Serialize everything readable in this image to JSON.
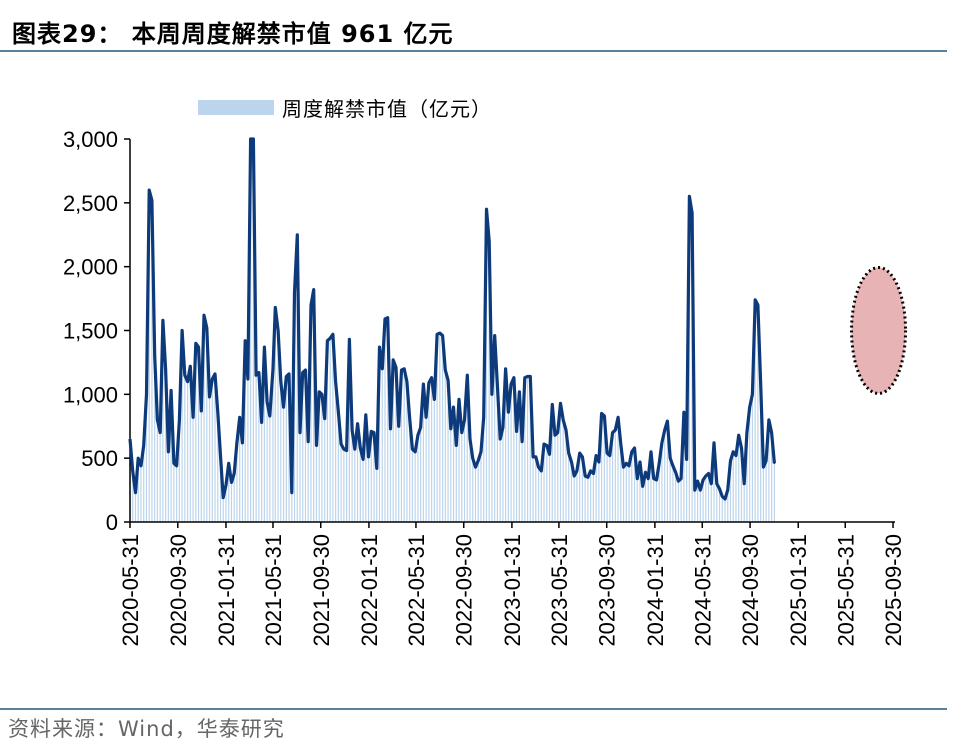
{
  "header": {
    "title": "图表29：  本周周度解禁市值 961 亿元"
  },
  "footer": {
    "source": "资料来源：Wind，华泰研究"
  },
  "colors": {
    "line": "#0d3a7a",
    "bars": "#bcd5ec",
    "highlight_fill": "#e8b3b5",
    "rule": "#5b7f99"
  },
  "chart_data": {
    "type": "line",
    "legend": {
      "label": "周度解禁市值（亿元）",
      "placement": "top-left"
    },
    "ylim": [
      0,
      3000
    ],
    "yticks": [
      0,
      500,
      1000,
      1500,
      2000,
      2500,
      3000
    ],
    "ytick_labels": [
      "0",
      "500",
      "1,000",
      "1,500",
      "2,000",
      "2,500",
      "3,000"
    ],
    "xlim": [
      "2020-05-31",
      "2025-10-05"
    ],
    "xticks": [
      "2020-05-31",
      "2020-09-30",
      "2021-01-31",
      "2021-05-31",
      "2021-09-30",
      "2022-01-31",
      "2022-05-31",
      "2022-09-30",
      "2023-01-31",
      "2023-05-31",
      "2023-09-30",
      "2024-01-31",
      "2024-05-31",
      "2024-09-30",
      "2025-01-31",
      "2025-05-31",
      "2025-09-30"
    ],
    "highlight": {
      "x": "2025-08-24",
      "y": 1500,
      "note": "latest spike circled"
    },
    "series": [
      {
        "kind": "line",
        "points": [
          [
            "2020-05-31",
            650
          ],
          [
            "2020-06-07",
            400
          ],
          [
            "2020-06-14",
            230
          ],
          [
            "2020-06-21",
            500
          ],
          [
            "2020-06-28",
            440
          ],
          [
            "2020-07-05",
            600
          ],
          [
            "2020-07-12",
            1000
          ],
          [
            "2020-07-19",
            2600
          ],
          [
            "2020-07-26",
            2520
          ],
          [
            "2020-08-02",
            1300
          ],
          [
            "2020-08-09",
            800
          ],
          [
            "2020-08-16",
            700
          ],
          [
            "2020-08-23",
            1580
          ],
          [
            "2020-08-30",
            1200
          ],
          [
            "2020-09-06",
            550
          ],
          [
            "2020-09-13",
            1030
          ],
          [
            "2020-09-20",
            460
          ],
          [
            "2020-09-27",
            440
          ],
          [
            "2020-10-04",
            800
          ],
          [
            "2020-10-11",
            1500
          ],
          [
            "2020-10-18",
            1150
          ],
          [
            "2020-10-25",
            1100
          ],
          [
            "2020-11-01",
            1220
          ],
          [
            "2020-11-08",
            820
          ],
          [
            "2020-11-15",
            1400
          ],
          [
            "2020-11-22",
            1370
          ],
          [
            "2020-11-29",
            870
          ],
          [
            "2020-12-06",
            1620
          ],
          [
            "2020-12-13",
            1520
          ],
          [
            "2020-12-20",
            980
          ],
          [
            "2020-12-27",
            1120
          ],
          [
            "2021-01-03",
            1160
          ],
          [
            "2021-01-10",
            870
          ],
          [
            "2021-01-17",
            520
          ],
          [
            "2021-01-24",
            190
          ],
          [
            "2021-01-31",
            290
          ],
          [
            "2021-02-07",
            460
          ],
          [
            "2021-02-14",
            310
          ],
          [
            "2021-02-21",
            380
          ],
          [
            "2021-02-28",
            620
          ],
          [
            "2021-03-07",
            820
          ],
          [
            "2021-03-14",
            620
          ],
          [
            "2021-03-21",
            1420
          ],
          [
            "2021-03-28",
            1120
          ],
          [
            "2021-04-04",
            3000
          ],
          [
            "2021-04-11",
            3000
          ],
          [
            "2021-04-18",
            1150
          ],
          [
            "2021-04-25",
            1170
          ],
          [
            "2021-05-02",
            780
          ],
          [
            "2021-05-09",
            1370
          ],
          [
            "2021-05-16",
            940
          ],
          [
            "2021-05-23",
            830
          ],
          [
            "2021-05-31",
            1200
          ],
          [
            "2021-06-06",
            1680
          ],
          [
            "2021-06-13",
            1500
          ],
          [
            "2021-06-20",
            1100
          ],
          [
            "2021-06-27",
            900
          ],
          [
            "2021-07-04",
            1140
          ],
          [
            "2021-07-11",
            1160
          ],
          [
            "2021-07-18",
            230
          ],
          [
            "2021-07-25",
            1800
          ],
          [
            "2021-08-01",
            2250
          ],
          [
            "2021-08-08",
            700
          ],
          [
            "2021-08-15",
            1170
          ],
          [
            "2021-08-22",
            1190
          ],
          [
            "2021-08-29",
            630
          ],
          [
            "2021-09-05",
            1700
          ],
          [
            "2021-09-12",
            1820
          ],
          [
            "2021-09-19",
            600
          ],
          [
            "2021-09-26",
            1020
          ],
          [
            "2021-10-03",
            1000
          ],
          [
            "2021-10-10",
            810
          ],
          [
            "2021-10-17",
            1420
          ],
          [
            "2021-10-24",
            1440
          ],
          [
            "2021-10-31",
            1470
          ],
          [
            "2021-11-07",
            1100
          ],
          [
            "2021-11-14",
            860
          ],
          [
            "2021-11-21",
            610
          ],
          [
            "2021-11-28",
            570
          ],
          [
            "2021-12-05",
            560
          ],
          [
            "2021-12-12",
            1430
          ],
          [
            "2021-12-19",
            720
          ],
          [
            "2021-12-26",
            570
          ],
          [
            "2022-01-02",
            770
          ],
          [
            "2022-01-09",
            580
          ],
          [
            "2022-01-16",
            490
          ],
          [
            "2022-01-23",
            840
          ],
          [
            "2022-01-30",
            510
          ],
          [
            "2022-02-06",
            710
          ],
          [
            "2022-02-13",
            700
          ],
          [
            "2022-02-20",
            420
          ],
          [
            "2022-02-27",
            1370
          ],
          [
            "2022-03-06",
            1200
          ],
          [
            "2022-03-13",
            1590
          ],
          [
            "2022-03-20",
            1600
          ],
          [
            "2022-03-27",
            730
          ],
          [
            "2022-04-03",
            1270
          ],
          [
            "2022-04-10",
            1210
          ],
          [
            "2022-04-17",
            750
          ],
          [
            "2022-04-24",
            1190
          ],
          [
            "2022-05-01",
            1200
          ],
          [
            "2022-05-08",
            1100
          ],
          [
            "2022-05-15",
            810
          ],
          [
            "2022-05-22",
            570
          ],
          [
            "2022-05-29",
            550
          ],
          [
            "2022-06-05",
            680
          ],
          [
            "2022-06-12",
            740
          ],
          [
            "2022-06-19",
            1080
          ],
          [
            "2022-06-26",
            820
          ],
          [
            "2022-07-03",
            1090
          ],
          [
            "2022-07-10",
            1130
          ],
          [
            "2022-07-17",
            960
          ],
          [
            "2022-07-24",
            1470
          ],
          [
            "2022-07-31",
            1480
          ],
          [
            "2022-08-07",
            1460
          ],
          [
            "2022-08-14",
            1190
          ],
          [
            "2022-08-21",
            1110
          ],
          [
            "2022-08-28",
            730
          ],
          [
            "2022-09-04",
            900
          ],
          [
            "2022-09-11",
            600
          ],
          [
            "2022-09-18",
            960
          ],
          [
            "2022-09-25",
            700
          ],
          [
            "2022-10-02",
            800
          ],
          [
            "2022-10-09",
            1150
          ],
          [
            "2022-10-16",
            650
          ],
          [
            "2022-10-23",
            500
          ],
          [
            "2022-10-30",
            430
          ],
          [
            "2022-11-06",
            480
          ],
          [
            "2022-11-13",
            550
          ],
          [
            "2022-11-20",
            820
          ],
          [
            "2022-11-27",
            2450
          ],
          [
            "2022-12-04",
            2200
          ],
          [
            "2022-12-11",
            1000
          ],
          [
            "2022-12-18",
            1460
          ],
          [
            "2022-12-25",
            1070
          ],
          [
            "2023-01-01",
            650
          ],
          [
            "2023-01-08",
            740
          ],
          [
            "2023-01-15",
            1200
          ],
          [
            "2023-01-22",
            860
          ],
          [
            "2023-01-29",
            1080
          ],
          [
            "2023-02-05",
            1130
          ],
          [
            "2023-02-12",
            710
          ],
          [
            "2023-02-19",
            1020
          ],
          [
            "2023-02-26",
            630
          ],
          [
            "2023-03-05",
            1130
          ],
          [
            "2023-03-12",
            1140
          ],
          [
            "2023-03-19",
            1140
          ],
          [
            "2023-03-26",
            510
          ],
          [
            "2023-04-02",
            510
          ],
          [
            "2023-04-09",
            430
          ],
          [
            "2023-04-16",
            400
          ],
          [
            "2023-04-23",
            610
          ],
          [
            "2023-04-30",
            600
          ],
          [
            "2023-05-07",
            530
          ],
          [
            "2023-05-14",
            920
          ],
          [
            "2023-05-21",
            680
          ],
          [
            "2023-05-28",
            700
          ],
          [
            "2023-06-04",
            930
          ],
          [
            "2023-06-11",
            800
          ],
          [
            "2023-06-18",
            720
          ],
          [
            "2023-06-25",
            540
          ],
          [
            "2023-07-02",
            470
          ],
          [
            "2023-07-09",
            360
          ],
          [
            "2023-07-16",
            400
          ],
          [
            "2023-07-23",
            540
          ],
          [
            "2023-07-30",
            510
          ],
          [
            "2023-08-06",
            360
          ],
          [
            "2023-08-13",
            350
          ],
          [
            "2023-08-20",
            400
          ],
          [
            "2023-08-27",
            380
          ],
          [
            "2023-09-03",
            520
          ],
          [
            "2023-09-10",
            470
          ],
          [
            "2023-09-17",
            850
          ],
          [
            "2023-09-24",
            830
          ],
          [
            "2023-10-01",
            540
          ],
          [
            "2023-10-08",
            520
          ],
          [
            "2023-10-15",
            700
          ],
          [
            "2023-10-22",
            720
          ],
          [
            "2023-10-29",
            820
          ],
          [
            "2023-11-05",
            610
          ],
          [
            "2023-11-12",
            430
          ],
          [
            "2023-11-19",
            460
          ],
          [
            "2023-11-26",
            440
          ],
          [
            "2023-12-03",
            550
          ],
          [
            "2023-12-10",
            580
          ],
          [
            "2023-12-17",
            340
          ],
          [
            "2023-12-24",
            470
          ],
          [
            "2023-12-31",
            280
          ],
          [
            "2024-01-07",
            390
          ],
          [
            "2024-01-14",
            340
          ],
          [
            "2024-01-21",
            550
          ],
          [
            "2024-01-28",
            340
          ],
          [
            "2024-02-04",
            330
          ],
          [
            "2024-02-11",
            460
          ],
          [
            "2024-02-18",
            620
          ],
          [
            "2024-02-25",
            720
          ],
          [
            "2024-03-03",
            790
          ],
          [
            "2024-03-10",
            500
          ],
          [
            "2024-03-17",
            440
          ],
          [
            "2024-03-24",
            390
          ],
          [
            "2024-03-31",
            320
          ],
          [
            "2024-04-07",
            340
          ],
          [
            "2024-04-14",
            860
          ],
          [
            "2024-04-21",
            490
          ],
          [
            "2024-04-28",
            2550
          ],
          [
            "2024-05-05",
            2420
          ],
          [
            "2024-05-12",
            250
          ],
          [
            "2024-05-19",
            320
          ],
          [
            "2024-05-26",
            250
          ],
          [
            "2024-06-02",
            330
          ],
          [
            "2024-06-09",
            360
          ],
          [
            "2024-06-16",
            380
          ],
          [
            "2024-06-23",
            300
          ],
          [
            "2024-06-30",
            620
          ],
          [
            "2024-07-07",
            300
          ],
          [
            "2024-07-14",
            260
          ],
          [
            "2024-07-21",
            200
          ],
          [
            "2024-07-28",
            180
          ],
          [
            "2024-08-04",
            250
          ],
          [
            "2024-08-11",
            480
          ],
          [
            "2024-08-18",
            550
          ],
          [
            "2024-08-25",
            520
          ],
          [
            "2024-09-01",
            680
          ],
          [
            "2024-09-08",
            580
          ],
          [
            "2024-09-15",
            300
          ],
          [
            "2024-09-22",
            700
          ],
          [
            "2024-09-29",
            900
          ],
          [
            "2024-10-06",
            1000
          ],
          [
            "2024-10-13",
            1740
          ],
          [
            "2024-10-20",
            1700
          ],
          [
            "2024-10-27",
            1100
          ],
          [
            "2024-11-03",
            430
          ],
          [
            "2024-11-10",
            480
          ],
          [
            "2024-11-17",
            800
          ],
          [
            "2024-11-24",
            700
          ],
          [
            "2024-12-01",
            460
          ]
        ]
      }
    ]
  }
}
